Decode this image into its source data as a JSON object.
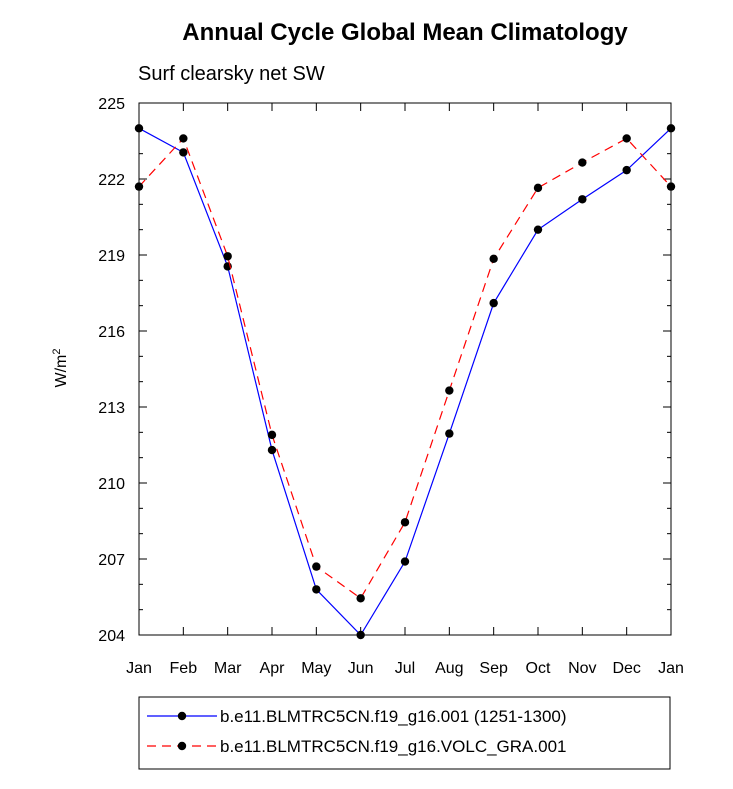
{
  "chart_data": {
    "type": "line",
    "title": "Annual Cycle Global Mean Climatology",
    "subtitle": "Surf clearsky net SW",
    "xlabel": "",
    "ylabel": "W/m",
    "ylabel_superscript": "2",
    "categories": [
      "Jan",
      "Feb",
      "Mar",
      "Apr",
      "May",
      "Jun",
      "Jul",
      "Aug",
      "Sep",
      "Oct",
      "Nov",
      "Dec",
      "Jan"
    ],
    "ylim": [
      204,
      225
    ],
    "yticks": [
      204,
      207,
      210,
      213,
      216,
      219,
      222,
      225
    ],
    "series": [
      {
        "name": "b.e11.BLMTRC5CN.f19_g16.001 (1251-1300)",
        "color": "#0000ff",
        "style": "solid",
        "values": [
          224.0,
          223.05,
          218.55,
          211.3,
          205.8,
          204.0,
          206.9,
          211.95,
          217.1,
          220.0,
          221.2,
          222.35,
          224.0
        ]
      },
      {
        "name": "b.e11.BLMTRC5CN.f19_g16.VOLC_GRA.001",
        "color": "#ff0000",
        "style": "dashed",
        "values": [
          221.7,
          223.6,
          218.95,
          211.9,
          206.7,
          205.45,
          208.45,
          213.65,
          218.85,
          221.65,
          222.65,
          223.6,
          221.7
        ]
      }
    ],
    "legend_position": "bottom"
  }
}
